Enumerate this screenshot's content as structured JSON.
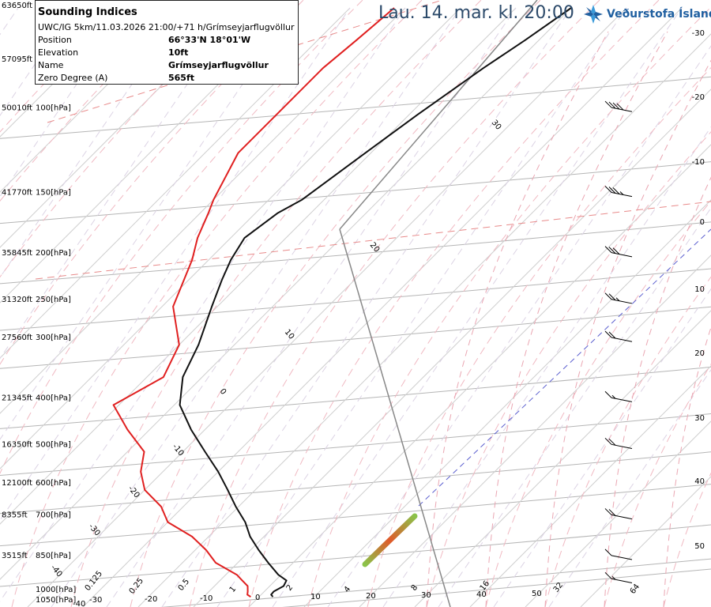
{
  "header": {
    "title": "Lau. 14. mar. kl. 20:00",
    "brand": "Veðurstofa Íslands"
  },
  "info_box": {
    "title": "Sounding Indices",
    "subtitle": "UWC/IG 5km/11.03.2026 21:00/+71 h/Grímseyjarflugvöllur",
    "rows": [
      {
        "label": "Position",
        "value": "66°33'N 18°01'W"
      },
      {
        "label": "Elevation",
        "value": "10ft"
      },
      {
        "label": "Name",
        "value": "Grímseyjarflugvöllur"
      },
      {
        "label": "Zero Degree (A)",
        "value": "565ft"
      }
    ]
  },
  "chart_data": {
    "type": "line",
    "title": "",
    "xlabel": "",
    "ylabel": "",
    "y_axis_unit": "hPa",
    "pressure_levels": [
      {
        "p": 100,
        "label": "100[hPa]",
        "alt": "50010ft"
      },
      {
        "p": 150,
        "label": "150[hPa]",
        "alt": "41770ft"
      },
      {
        "p": 200,
        "label": "200[hPa]",
        "alt": "35845ft"
      },
      {
        "p": 250,
        "label": "250[hPa]",
        "alt": "31320ft"
      },
      {
        "p": 300,
        "label": "300[hPa]",
        "alt": "27560ft"
      },
      {
        "p": 400,
        "label": "400[hPa]",
        "alt": "21345ft"
      },
      {
        "p": 500,
        "label": "500[hPa]",
        "alt": "16350ft"
      },
      {
        "p": 600,
        "label": "600[hPa]",
        "alt": "12100ft"
      },
      {
        "p": 700,
        "label": "700[hPa]",
        "alt": "8355ft"
      },
      {
        "p": 850,
        "label": "850[hPa]",
        "alt": "3515ft"
      },
      {
        "p": 1000,
        "label": "1000[hPa]",
        "alt": ""
      },
      {
        "p": 1050,
        "label": "1050[hPa]",
        "alt": ""
      }
    ],
    "top_altitude_labels": [
      "63650ft",
      "57095ft"
    ],
    "isotherm_labels": [
      "-40",
      "-30",
      "-20",
      "-10",
      "0",
      "10",
      "20",
      "30",
      "40",
      "50"
    ],
    "right_temperature_labels": [
      "-30",
      "-20",
      "-10",
      "0",
      "10",
      "20",
      "30",
      "40",
      "50"
    ],
    "mixing_ratio_labels": [
      "0.125",
      "0.25",
      "0.5",
      "1",
      "2",
      "4",
      "8",
      "16",
      "32",
      "64"
    ],
    "mixing_ratio_colors": [
      "#000",
      "#000",
      "#000",
      "#000",
      "#000",
      "#000",
      "#000",
      "#000",
      "#000",
      "#000"
    ],
    "diagonal_labels": [
      {
        "text": "30",
        "color": "#000"
      },
      {
        "text": "20",
        "color": "#000"
      },
      {
        "text": "10",
        "color": "#000"
      },
      {
        "text": "0",
        "color": "#000"
      },
      {
        "text": "-10",
        "color": "#000"
      },
      {
        "text": "-20",
        "color": "#000"
      },
      {
        "text": "-30",
        "color": "#000"
      },
      {
        "text": "-40",
        "color": "#000"
      }
    ],
    "series": [
      {
        "name": "",
        "color": "#111111",
        "values": [
          [
            1000,
            2.5
          ],
          [
            990,
            1.8
          ],
          [
            975,
            1.7
          ],
          [
            950,
            2.5
          ],
          [
            925,
            2.0
          ],
          [
            900,
            -0.5
          ],
          [
            850,
            -4.5
          ],
          [
            800,
            -8.5
          ],
          [
            750,
            -12.5
          ],
          [
            700,
            -16.0
          ],
          [
            650,
            -20.5
          ],
          [
            600,
            -25.0
          ],
          [
            550,
            -30.0
          ],
          [
            500,
            -36.0
          ],
          [
            450,
            -42.5
          ],
          [
            400,
            -49.0
          ],
          [
            350,
            -53.5
          ],
          [
            300,
            -56.5
          ],
          [
            250,
            -61.0
          ],
          [
            220,
            -64.0
          ],
          [
            200,
            -66.0
          ],
          [
            180,
            -67.5
          ],
          [
            160,
            -66.0
          ],
          [
            150,
            -64.0
          ],
          [
            120,
            -61.0
          ],
          [
            100,
            -58.5
          ],
          [
            80,
            -55.0
          ],
          [
            70,
            -52.5
          ],
          [
            60,
            -50.0
          ]
        ]
      },
      {
        "name": "",
        "color": "#e02020",
        "values": [
          [
            1000,
            -1.5
          ],
          [
            990,
            -2.5
          ],
          [
            975,
            -3.0
          ],
          [
            950,
            -4.0
          ],
          [
            925,
            -6.0
          ],
          [
            900,
            -8.0
          ],
          [
            850,
            -14.0
          ],
          [
            800,
            -18.0
          ],
          [
            750,
            -23.0
          ],
          [
            700,
            -30.0
          ],
          [
            650,
            -34.0
          ],
          [
            600,
            -40.0
          ],
          [
            550,
            -44.0
          ],
          [
            500,
            -47.0
          ],
          [
            450,
            -54.0
          ],
          [
            400,
            -61.0
          ],
          [
            350,
            -57.0
          ],
          [
            300,
            -60.0
          ],
          [
            250,
            -68.0
          ],
          [
            200,
            -73.0
          ],
          [
            180,
            -76.0
          ],
          [
            160,
            -78.5
          ],
          [
            150,
            -80.0
          ],
          [
            120,
            -84.0
          ],
          [
            100,
            -84.0
          ],
          [
            80,
            -84.0
          ],
          [
            70,
            -83.0
          ],
          [
            60,
            -82.0
          ]
        ]
      }
    ],
    "wind_barbs": [
      {
        "p": 950,
        "dir": 300,
        "speed_kt": 15
      },
      {
        "p": 850,
        "dir": 290,
        "speed_kt": 10
      },
      {
        "p": 700,
        "dir": 260,
        "speed_kt": 20
      },
      {
        "p": 500,
        "dir": 230,
        "speed_kt": 20
      },
      {
        "p": 400,
        "dir": 210,
        "speed_kt": 15
      },
      {
        "p": 300,
        "dir": 260,
        "speed_kt": 20
      },
      {
        "p": 250,
        "dir": 260,
        "speed_kt": 25
      },
      {
        "p": 200,
        "dir": 270,
        "speed_kt": 30
      },
      {
        "p": 150,
        "dir": 270,
        "speed_kt": 35
      },
      {
        "p": 100,
        "dir": 280,
        "speed_kt": 40
      }
    ]
  }
}
